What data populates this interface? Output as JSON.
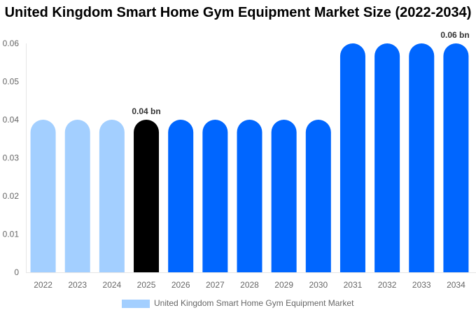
{
  "chart_data": {
    "type": "bar",
    "title": "United Kingdom Smart Home Gym Equipment Market Size (2022-2034)",
    "categories": [
      "2022",
      "2023",
      "2024",
      "2025",
      "2026",
      "2027",
      "2028",
      "2029",
      "2030",
      "2031",
      "2032",
      "2033",
      "2034"
    ],
    "series": [
      {
        "name": "United Kingdom Smart Home Gym Equipment Market",
        "values": [
          0.04,
          0.04,
          0.04,
          0.04,
          0.04,
          0.04,
          0.04,
          0.04,
          0.04,
          0.06,
          0.06,
          0.06,
          0.06
        ]
      }
    ],
    "bar_colors": [
      "#a3cfff",
      "#a3cfff",
      "#a3cfff",
      "#000000",
      "#0066ff",
      "#0066ff",
      "#0066ff",
      "#0066ff",
      "#0066ff",
      "#0066ff",
      "#0066ff",
      "#0066ff",
      "#0066ff"
    ],
    "data_labels": [
      {
        "index": 3,
        "text": "0.04 bn"
      },
      {
        "index": 12,
        "text": "0.06 bn"
      }
    ],
    "yticks": [
      "0",
      "0.01",
      "0.02",
      "0.03",
      "0.04",
      "0.05",
      "0.06"
    ],
    "ylim": [
      0,
      0.06
    ],
    "grid": false,
    "legend_position": "bottom",
    "legend_color": "#a3cfff"
  }
}
